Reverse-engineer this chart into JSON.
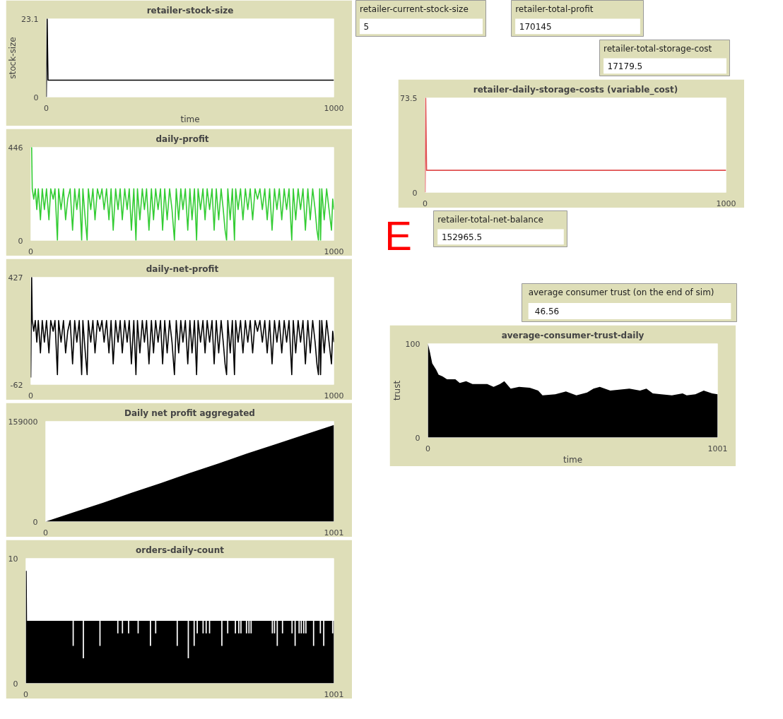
{
  "chart_data": [
    {
      "type": "line",
      "title": "retailer-stock-size",
      "xlabel": "time",
      "ylabel": "stock-size",
      "xlim": [
        0,
        1000
      ],
      "ylim": [
        0,
        23.1
      ],
      "xticks": [
        0,
        1000
      ],
      "yticks": [
        0,
        23.1
      ],
      "series": [
        {
          "color": "#000000",
          "x": [
            0,
            3,
            6,
            1000
          ],
          "values": [
            0,
            23.1,
            5,
            5
          ]
        }
      ]
    },
    {
      "type": "line",
      "title": "daily-profit",
      "xlim": [
        0,
        1000
      ],
      "ylim": [
        0,
        446
      ],
      "xticks": [
        0,
        1000
      ],
      "yticks": [
        0,
        446
      ],
      "series": [
        {
          "color": "#33cc33",
          "x": [
            0,
            3,
            5,
            10,
            15,
            20,
            25,
            32,
            38,
            45,
            52,
            60,
            66,
            74,
            80,
            88,
            92,
            100,
            108,
            115,
            122,
            130,
            138,
            145,
            152,
            160,
            168,
            172,
            180,
            186,
            190,
            198,
            205,
            212,
            220,
            228,
            235,
            242,
            250,
            258,
            265,
            272,
            280,
            288,
            295,
            302,
            310,
            318,
            325,
            332,
            340,
            347,
            352,
            360,
            368,
            375,
            382,
            390,
            398,
            405,
            412,
            420,
            428,
            435,
            442,
            450,
            458,
            466,
            474,
            480,
            488,
            495,
            502,
            510,
            518,
            525,
            532,
            540,
            547,
            552,
            560,
            568,
            575,
            582,
            590,
            598,
            605,
            612,
            620,
            628,
            635,
            641,
            646,
            650,
            658,
            665,
            672,
            676,
            684,
            692,
            700,
            708,
            716,
            724,
            732,
            740,
            748,
            756,
            764,
            772,
            780,
            788,
            796,
            804,
            812,
            820,
            828,
            836,
            844,
            852,
            861,
            866,
            874,
            882,
            890,
            898,
            906,
            914,
            922,
            930,
            938,
            944,
            949,
            953,
            956,
            960,
            968,
            976,
            984,
            992,
            996,
            1000
          ],
          "values": [
            446,
            446,
            247,
            198,
            247,
            148,
            247,
            99,
            247,
            148,
            247,
            99,
            247,
            198,
            247,
            0,
            247,
            148,
            247,
            99,
            198,
            247,
            49,
            247,
            148,
            247,
            0,
            247,
            99,
            0,
            247,
            148,
            247,
            99,
            247,
            198,
            247,
            148,
            247,
            99,
            247,
            49,
            247,
            148,
            247,
            99,
            247,
            148,
            247,
            49,
            247,
            0,
            247,
            99,
            247,
            148,
            247,
            49,
            247,
            99,
            247,
            148,
            247,
            49,
            247,
            99,
            247,
            148,
            0,
            247,
            99,
            247,
            148,
            247,
            49,
            247,
            99,
            247,
            0,
            247,
            148,
            247,
            99,
            247,
            148,
            247,
            49,
            247,
            99,
            247,
            148,
            49,
            0,
            247,
            99,
            247,
            0,
            247,
            148,
            247,
            99,
            247,
            148,
            247,
            99,
            247,
            198,
            247,
            148,
            247,
            99,
            247,
            49,
            247,
            148,
            247,
            99,
            247,
            148,
            247,
            0,
            247,
            99,
            247,
            148,
            247,
            49,
            247,
            99,
            247,
            148,
            49,
            0,
            247,
            0,
            247,
            99,
            247,
            148,
            49,
            198,
            148
          ]
        }
      ]
    },
    {
      "type": "line",
      "title": "daily-net-profit",
      "xlim": [
        0,
        1000
      ],
      "ylim": [
        -62,
        427
      ],
      "xticks": [
        0,
        1000
      ],
      "yticks": [
        -62,
        427
      ],
      "series": [
        {
          "color": "#000000",
          "x": [
            0,
            3,
            5,
            10,
            15,
            20,
            25,
            32,
            38,
            45,
            52,
            60,
            66,
            74,
            80,
            88,
            92,
            100,
            108,
            115,
            122,
            130,
            138,
            145,
            152,
            160,
            168,
            172,
            180,
            186,
            190,
            198,
            205,
            212,
            220,
            228,
            235,
            242,
            250,
            258,
            265,
            272,
            280,
            288,
            295,
            302,
            310,
            318,
            325,
            332,
            340,
            347,
            352,
            360,
            368,
            375,
            382,
            390,
            398,
            405,
            412,
            420,
            428,
            435,
            442,
            450,
            458,
            466,
            474,
            480,
            488,
            495,
            502,
            510,
            518,
            525,
            532,
            540,
            547,
            552,
            560,
            568,
            575,
            582,
            590,
            598,
            605,
            612,
            620,
            628,
            635,
            641,
            646,
            650,
            658,
            665,
            672,
            676,
            684,
            692,
            700,
            708,
            716,
            724,
            732,
            740,
            748,
            756,
            764,
            772,
            780,
            788,
            796,
            804,
            812,
            820,
            828,
            836,
            844,
            852,
            861,
            866,
            874,
            882,
            890,
            898,
            906,
            914,
            922,
            930,
            938,
            944,
            949,
            953,
            956,
            960,
            968,
            976,
            984,
            992,
            996,
            1000
          ],
          "values": [
            -30,
            427,
            230,
            181,
            230,
            131,
            230,
            82,
            230,
            131,
            230,
            82,
            230,
            181,
            230,
            -17,
            230,
            131,
            230,
            82,
            181,
            230,
            32,
            230,
            131,
            230,
            -17,
            230,
            82,
            -17,
            230,
            131,
            230,
            82,
            230,
            181,
            230,
            131,
            230,
            82,
            230,
            32,
            230,
            131,
            230,
            82,
            230,
            131,
            230,
            32,
            230,
            -17,
            230,
            82,
            230,
            131,
            230,
            32,
            230,
            82,
            230,
            131,
            230,
            32,
            230,
            82,
            230,
            131,
            -17,
            230,
            82,
            230,
            131,
            230,
            32,
            230,
            82,
            230,
            -17,
            230,
            131,
            230,
            82,
            230,
            131,
            230,
            32,
            230,
            82,
            230,
            131,
            32,
            -17,
            230,
            82,
            230,
            -17,
            230,
            131,
            230,
            82,
            230,
            131,
            230,
            82,
            230,
            181,
            230,
            131,
            230,
            82,
            230,
            32,
            230,
            131,
            230,
            82,
            230,
            131,
            230,
            -17,
            230,
            82,
            230,
            131,
            230,
            32,
            230,
            82,
            230,
            131,
            32,
            -17,
            230,
            -17,
            230,
            82,
            230,
            131,
            32,
            181,
            131
          ]
        }
      ]
    },
    {
      "type": "area",
      "title": "Daily net profit aggregated",
      "xlim": [
        0,
        1001
      ],
      "ylim": [
        0,
        159000
      ],
      "xticks": [
        0,
        1001
      ],
      "yticks": [
        0,
        159000
      ],
      "series": [
        {
          "color": "#000000",
          "x": [
            0,
            100,
            200,
            300,
            400,
            500,
            600,
            700,
            800,
            900,
            1001
          ],
          "values": [
            0,
            15000,
            30000,
            46000,
            61000,
            77000,
            92000,
            108000,
            123000,
            138000,
            153000
          ]
        }
      ]
    },
    {
      "type": "area",
      "title": "orders-daily-count",
      "xlim": [
        0,
        1001
      ],
      "ylim": [
        0,
        10
      ],
      "xticks": [
        0,
        1001
      ],
      "yticks": [
        0,
        10
      ],
      "series": [
        {
          "color": "#000000",
          "x": [
            0,
            3,
            4,
            152,
            152,
            156,
            156,
            185,
            185,
            189,
            189,
            239,
            239,
            243,
            243,
            297,
            297,
            301,
            301,
            312,
            312,
            316,
            316,
            332,
            332,
            336,
            336,
            363,
            363,
            367,
            367,
            403,
            403,
            407,
            407,
            420,
            420,
            424,
            424,
            490,
            490,
            494,
            494,
            526,
            526,
            530,
            530,
            545,
            545,
            549,
            549,
            555,
            555,
            559,
            559,
            574,
            574,
            578,
            578,
            584,
            584,
            588,
            588,
            595,
            595,
            599,
            599,
            635,
            635,
            639,
            639,
            654,
            654,
            658,
            658,
            679,
            679,
            683,
            683,
            690,
            690,
            694,
            694,
            697,
            697,
            701,
            701,
            715,
            715,
            719,
            719,
            723,
            723,
            727,
            727,
            730,
            730,
            734,
            734,
            799,
            799,
            803,
            803,
            806,
            806,
            810,
            810,
            815,
            815,
            819,
            819,
            832,
            832,
            836,
            836,
            863,
            863,
            867,
            867,
            873,
            873,
            877,
            877,
            886,
            886,
            890,
            890,
            893,
            893,
            897,
            897,
            901,
            901,
            905,
            905,
            908,
            908,
            912,
            912,
            933,
            933,
            937,
            937,
            955,
            955,
            959,
            959,
            966,
            966,
            970,
            970,
            995,
            995,
            999,
            999,
            1001
          ],
          "values": [
            9,
            9,
            5,
            5,
            3,
            3,
            5,
            5,
            2,
            2,
            5,
            5,
            3,
            3,
            5,
            5,
            4,
            4,
            5,
            5,
            4,
            4,
            5,
            5,
            4,
            4,
            5,
            5,
            4,
            4,
            5,
            5,
            3,
            3,
            5,
            5,
            4,
            4,
            5,
            5,
            3,
            3,
            5,
            5,
            2,
            2,
            5,
            5,
            3,
            3,
            5,
            5,
            4,
            4,
            5,
            5,
            4,
            4,
            5,
            5,
            4,
            4,
            5,
            5,
            4,
            4,
            5,
            5,
            3,
            3,
            5,
            5,
            4,
            4,
            5,
            5,
            4,
            4,
            5,
            5,
            4,
            4,
            5,
            5,
            4,
            4,
            5,
            5,
            4,
            4,
            5,
            5,
            4,
            4,
            5,
            5,
            4,
            4,
            5,
            5,
            4,
            4,
            5,
            5,
            4,
            4,
            5,
            5,
            3,
            3,
            5,
            5,
            4,
            4,
            5,
            5,
            4,
            4,
            5,
            5,
            3,
            3,
            5,
            5,
            4,
            4,
            5,
            5,
            4,
            4,
            5,
            5,
            4,
            4,
            5,
            5,
            4,
            4,
            5,
            5,
            3,
            3,
            5,
            5,
            4,
            4,
            5,
            5,
            3,
            3,
            5,
            5,
            4,
            4,
            5,
            5
          ]
        }
      ]
    },
    {
      "type": "other",
      "title": "retailer-current-stock-size",
      "annotations": [
        "5"
      ]
    },
    {
      "type": "other",
      "title": "retailer-total-profit",
      "annotations": [
        "170145"
      ]
    },
    {
      "type": "other",
      "title": "retailer-total-storage-cost",
      "annotations": [
        "17179.5"
      ]
    },
    {
      "type": "line",
      "title": "retailer-daily-storage-costs (variable_cost)",
      "xlim": [
        0,
        1000
      ],
      "ylim": [
        0,
        73.5
      ],
      "xticks": [
        0,
        1000
      ],
      "yticks": [
        0,
        73.5
      ],
      "series": [
        {
          "color": "#e05050",
          "x": [
            0,
            2,
            5,
            1000
          ],
          "values": [
            0,
            73.5,
            17.2,
            17.2
          ]
        }
      ]
    },
    {
      "type": "other",
      "annotations": [
        "E"
      ]
    },
    {
      "type": "other",
      "title": "retailer-total-net-balance",
      "annotations": [
        "152965.5"
      ]
    },
    {
      "type": "other",
      "title": "average consumer trust (on the end of sim)",
      "annotations": [
        "46.56"
      ]
    },
    {
      "type": "area",
      "title": "average-consumer-trust-daily",
      "xlabel": "time",
      "ylabel": "trust",
      "xlim": [
        0,
        1001
      ],
      "ylim": [
        0,
        100
      ],
      "xticks": [
        0,
        1001
      ],
      "yticks": [
        0,
        100
      ],
      "series": [
        {
          "color": "#000000",
          "x": [
            0,
            7,
            15,
            29,
            37,
            51,
            66,
            95,
            110,
            132,
            154,
            183,
            205,
            227,
            249,
            264,
            286,
            315,
            352,
            381,
            396,
            440,
            477,
            513,
            550,
            572,
            594,
            630,
            660,
            696,
            733,
            755,
            777,
            806,
            843,
            880,
            894,
            924,
            953,
            982,
            1001
          ],
          "values": [
            100,
            91,
            79,
            72,
            67,
            65,
            62,
            62,
            58,
            60,
            57,
            57,
            57,
            54,
            57,
            60,
            52,
            54,
            53,
            50,
            45,
            46,
            49,
            45,
            48,
            52,
            54,
            50,
            51,
            52,
            50,
            52,
            47,
            46,
            45,
            47,
            45,
            46,
            50,
            47,
            46
          ]
        }
      ]
    }
  ]
}
